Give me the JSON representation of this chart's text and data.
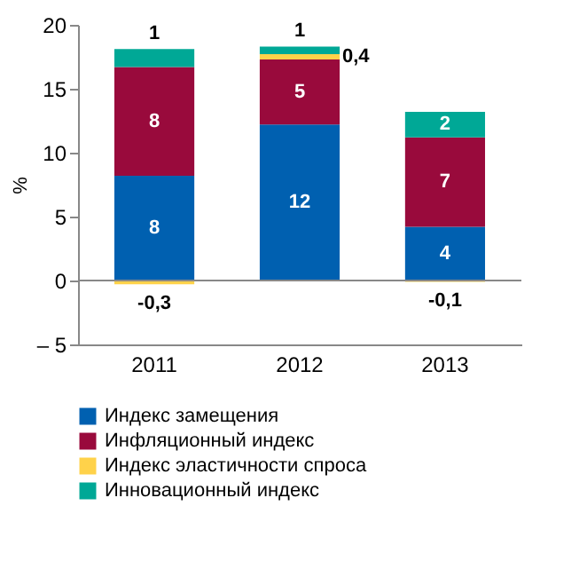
{
  "chart_data": {
    "type": "bar",
    "stacked": true,
    "ylabel": "%",
    "categories": [
      "2011",
      "2012",
      "2013"
    ],
    "series": [
      {
        "name": "Индекс замещения",
        "color": "#0060b0",
        "values": [
          8.2,
          12.2,
          4.2
        ],
        "value_labels": [
          "8",
          "12",
          "4"
        ]
      },
      {
        "name": "Инфляционный индекс",
        "color": "#990a3c",
        "values": [
          8.5,
          5.1,
          7.0
        ],
        "value_labels": [
          "8",
          "5",
          "7"
        ]
      },
      {
        "name": "Индекс эластичности спроса",
        "color": "#ffd24a",
        "values": [
          -0.3,
          0.4,
          -0.1
        ],
        "value_labels": [
          "-0,3",
          "0,4",
          "-0,1"
        ]
      },
      {
        "name": "Инновационный индекс",
        "color": "#00a896",
        "values": [
          1.4,
          0.6,
          2.0
        ],
        "value_labels": [
          "1",
          "1",
          "2"
        ]
      }
    ],
    "ylim": [
      -5,
      20
    ],
    "yticks": [
      {
        "value": -5,
        "label": "– 5"
      },
      0,
      5,
      10,
      15,
      20
    ],
    "grid": false,
    "ref_lines": [
      {
        "axis": "y",
        "value": 0,
        "color": "#888888"
      }
    ],
    "legend": "bottom"
  }
}
